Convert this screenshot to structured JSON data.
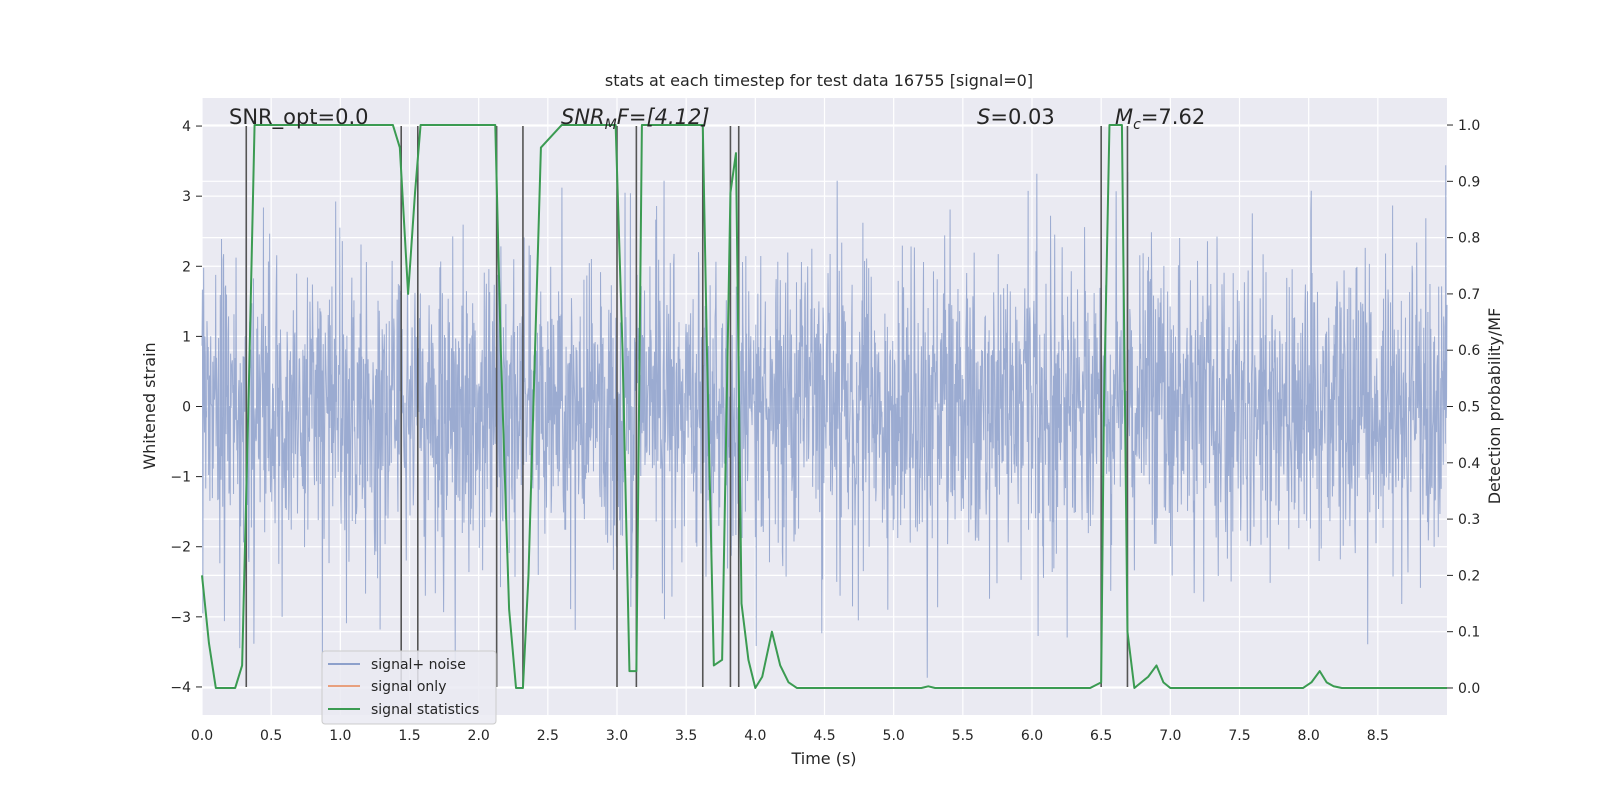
{
  "chart_data": {
    "type": "line",
    "title": "stats at each timestep for test data 16755 [signal=0]",
    "xlabel": "Time (s)",
    "ylabel": "Whitened strain",
    "y2label": "Detection probability/MF",
    "xlim": [
      0,
      9.0
    ],
    "ylim": [
      -4.4,
      4.4
    ],
    "y2lim": [
      -0.048,
      1.048
    ],
    "xticks": [
      0.0,
      0.5,
      1.0,
      1.5,
      2.0,
      2.5,
      3.0,
      3.5,
      4.0,
      4.5,
      5.0,
      5.5,
      6.0,
      6.5,
      7.0,
      7.5,
      8.0,
      8.5
    ],
    "xtick_labels": [
      "0.0",
      "0.5",
      "1.0",
      "1.5",
      "2.0",
      "2.5",
      "3.0",
      "3.5",
      "4.0",
      "4.5",
      "5.0",
      "5.5",
      "6.0",
      "6.5",
      "7.0",
      "7.5",
      "8.0",
      "8.5"
    ],
    "yticks": [
      -4,
      -3,
      -2,
      -1,
      0,
      1,
      2,
      3,
      4
    ],
    "ytick_labels": [
      "−4",
      "−3",
      "−2",
      "−1",
      "0",
      "1",
      "2",
      "3",
      "4"
    ],
    "y2ticks": [
      0.0,
      0.1,
      0.2,
      0.3,
      0.4,
      0.5,
      0.6,
      0.7,
      0.8,
      0.9,
      1.0
    ],
    "y2tick_labels": [
      "0.0",
      "0.1",
      "0.2",
      "0.3",
      "0.4",
      "0.5",
      "0.6",
      "0.7",
      "0.8",
      "0.9",
      "1.0"
    ],
    "grid": true,
    "legend_position": "lower-left",
    "annotations": {
      "snr_opt": "SNR_opt=0.0",
      "snr_mf_main": "SNR",
      "snr_mf_sub": "M",
      "snr_mf_rest": "F=[4.12]",
      "s_main": "S",
      "s_rest": "=0.03",
      "mc_main": "M",
      "mc_sub": "c",
      "mc_rest": "=7.62"
    },
    "series": [
      {
        "name": "signal+ noise",
        "color": "#8da0cb",
        "kind": "noise",
        "seed": 16755,
        "sample_count": 3000,
        "spread": 1.1,
        "peak_range": [
          3.9,
          4.0
        ]
      },
      {
        "name": "signal only",
        "color": "#e8a07e",
        "kind": "line",
        "values": []
      },
      {
        "name": "signal statistics",
        "color": "#3b9b52",
        "kind": "probability",
        "x": [
          0.0,
          0.05,
          0.1,
          0.15,
          0.2,
          0.24,
          0.29,
          0.34,
          0.38,
          0.45,
          0.6,
          1.0,
          1.38,
          1.43,
          1.49,
          1.54,
          1.58,
          1.62,
          1.7,
          2.0,
          2.12,
          2.16,
          2.22,
          2.27,
          2.32,
          2.36,
          2.45,
          2.6,
          2.99,
          3.04,
          3.09,
          3.14,
          3.18,
          3.25,
          3.5,
          3.62,
          3.65,
          3.7,
          3.76,
          3.82,
          3.86,
          3.9,
          3.95,
          4.0,
          4.05,
          4.12,
          4.18,
          4.24,
          4.3,
          4.4,
          5.0,
          5.2,
          5.25,
          5.3,
          5.5,
          6.0,
          6.42,
          6.5,
          6.52,
          6.56,
          6.6,
          6.65,
          6.69,
          6.74,
          6.79,
          6.84,
          6.9,
          6.95,
          7.0,
          7.2,
          7.5,
          7.96,
          8.02,
          8.08,
          8.13,
          8.18,
          8.24,
          8.5,
          9.0
        ],
        "values": [
          0.2,
          0.08,
          0.0,
          0.0,
          0.0,
          0.0,
          0.04,
          0.55,
          1.0,
          1.0,
          1.0,
          1.0,
          1.0,
          0.96,
          0.7,
          0.88,
          1.0,
          1.0,
          1.0,
          1.0,
          1.0,
          0.6,
          0.14,
          0.0,
          0.0,
          0.2,
          0.96,
          1.0,
          1.0,
          0.6,
          0.03,
          0.03,
          1.0,
          1.0,
          1.0,
          1.0,
          0.6,
          0.04,
          0.05,
          0.88,
          0.95,
          0.15,
          0.05,
          0.0,
          0.02,
          0.1,
          0.04,
          0.01,
          0.0,
          0.0,
          0.0,
          0.0,
          0.003,
          0.0,
          0.0,
          0.0,
          0.0,
          0.01,
          0.5,
          1.0,
          1.0,
          1.0,
          0.1,
          0.0,
          0.01,
          0.02,
          0.04,
          0.01,
          0.0,
          0.0,
          0.0,
          0.0,
          0.01,
          0.03,
          0.01,
          0.003,
          0.0,
          0.0,
          0.0
        ]
      }
    ],
    "markers": {
      "kind": "vertical-lines",
      "color": "#555555",
      "x": [
        0.32,
        1.44,
        1.56,
        2.13,
        2.32,
        3.0,
        3.14,
        3.62,
        3.82,
        3.88,
        6.5,
        6.69
      ],
      "y_range": [
        -4,
        4
      ]
    }
  }
}
